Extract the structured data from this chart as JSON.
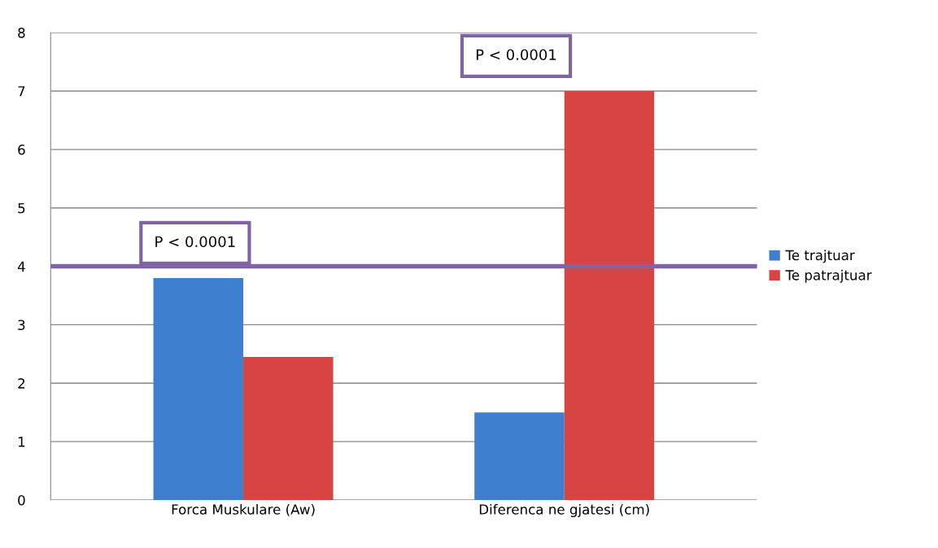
{
  "chart_data": {
    "type": "bar",
    "categories": [
      "Forca Muskulare (Aw)",
      "Diferenca ne gjatesi (cm)"
    ],
    "series": [
      {
        "name": "Te trajtuar",
        "color": "#3f7fcf",
        "values": [
          3.8,
          1.5
        ]
      },
      {
        "name": "Te patrajtuar",
        "color": "#d64541",
        "values": [
          2.45,
          7.0
        ]
      }
    ],
    "ylim": [
      0,
      8
    ],
    "yticks": [
      0,
      1,
      2,
      3,
      4,
      5,
      6,
      7,
      8
    ],
    "grid": "y",
    "legend": "right",
    "ref_lines": [
      {
        "axis": "y",
        "value": 4,
        "color": "#8064a2"
      }
    ],
    "annotations": [
      "P < 0.0001",
      "P < 0.0001"
    ]
  }
}
